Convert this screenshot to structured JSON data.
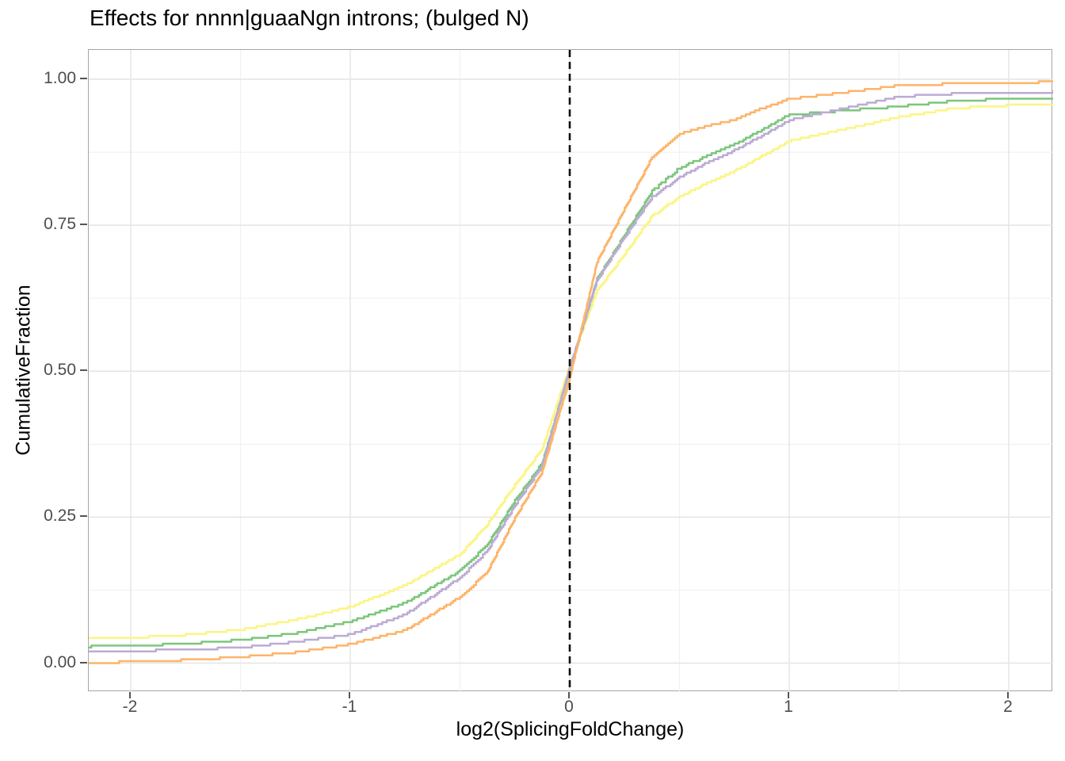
{
  "chart_data": {
    "type": "line",
    "variant": "ecdf",
    "title": "Effects for nnnn|guaaNgn introns; (bulged N)",
    "xlabel": "log2(SplicingFoldChange)",
    "ylabel": "CumulativeFraction",
    "xlim": [
      -2.19,
      2.2
    ],
    "ylim": [
      -0.05,
      1.05
    ],
    "legend_position": "none",
    "grid": {
      "major": true,
      "minor": true
    },
    "x_tick_values": [
      -2,
      -1,
      0,
      1,
      2
    ],
    "x_tick_labels": [
      "-2",
      "-1",
      "0",
      "1",
      "2"
    ],
    "x_minor_tick_values": [
      -1.5,
      -0.5,
      0.5,
      1.5
    ],
    "y_tick_values": [
      0,
      0.25,
      0.5,
      0.75,
      1
    ],
    "y_tick_labels": [
      "0.00",
      "0.25",
      "0.50",
      "0.75",
      "1.00"
    ],
    "y_minor_tick_values": [
      0.125,
      0.375,
      0.625,
      0.875
    ],
    "reference_line": {
      "axis": "x",
      "value": 0,
      "style": "dashed",
      "color": "#111111"
    },
    "x": [
      -2.19,
      -2.0,
      -1.75,
      -1.5,
      -1.25,
      -1.0,
      -0.75,
      -0.5,
      -0.375,
      -0.25,
      -0.125,
      0,
      0.125,
      0.25,
      0.375,
      0.5,
      0.625,
      0.75,
      0.875,
      1.0,
      1.25,
      1.5,
      1.75,
      2.0,
      2.2
    ],
    "series": [
      {
        "name": "yellow-curve",
        "color": "#FBF584",
        "values": [
          0.044,
          0.045,
          0.05,
          0.059,
          0.076,
          0.098,
          0.135,
          0.188,
          0.24,
          0.307,
          0.369,
          0.512,
          0.64,
          0.703,
          0.768,
          0.8,
          0.825,
          0.845,
          0.87,
          0.896,
          0.916,
          0.937,
          0.952,
          0.957,
          0.959
        ]
      },
      {
        "name": "green-curve",
        "color": "#7CC67C",
        "values": [
          0.03,
          0.031,
          0.035,
          0.041,
          0.053,
          0.073,
          0.105,
          0.16,
          0.205,
          0.28,
          0.345,
          0.505,
          0.66,
          0.736,
          0.81,
          0.85,
          0.87,
          0.89,
          0.915,
          0.941,
          0.948,
          0.955,
          0.965,
          0.968,
          0.968
        ]
      },
      {
        "name": "purple-curve",
        "color": "#BCABD3",
        "values": [
          0.021,
          0.022,
          0.025,
          0.028,
          0.038,
          0.051,
          0.085,
          0.148,
          0.195,
          0.272,
          0.34,
          0.508,
          0.658,
          0.732,
          0.8,
          0.834,
          0.859,
          0.88,
          0.905,
          0.932,
          0.952,
          0.972,
          0.977,
          0.979,
          0.98
        ]
      },
      {
        "name": "orange-curve",
        "color": "#FDB469",
        "values": [
          0.002,
          0.004,
          0.007,
          0.012,
          0.02,
          0.034,
          0.058,
          0.115,
          0.158,
          0.25,
          0.33,
          0.49,
          0.69,
          0.78,
          0.868,
          0.908,
          0.922,
          0.932,
          0.952,
          0.968,
          0.979,
          0.991,
          0.994,
          0.996,
          0.997
        ]
      }
    ]
  },
  "colors": {
    "grid_major": "#e4e4e4",
    "grid_minor": "#f1f1f1",
    "panel_border": "#a6a6a6",
    "tick_mark": "#555555",
    "tick_label": "#4d4d4d",
    "title": "#000000",
    "axis_title": "#000000"
  }
}
